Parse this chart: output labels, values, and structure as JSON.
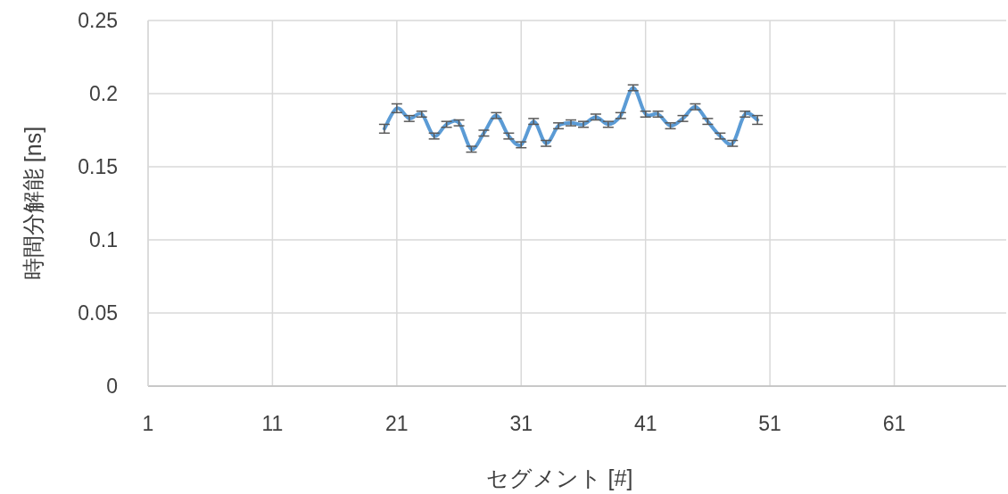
{
  "chart_data": {
    "type": "line",
    "xlabel": "セグメント [#]",
    "ylabel": "時間分解能 [ns]",
    "x": [
      20,
      21,
      22,
      23,
      24,
      25,
      26,
      27,
      28,
      29,
      30,
      31,
      32,
      33,
      34,
      35,
      36,
      37,
      38,
      39,
      40,
      41,
      42,
      43,
      44,
      45,
      46,
      47,
      48,
      49,
      50
    ],
    "series": [
      {
        "color": "#5b9bd5",
        "values": [
          0.176,
          0.19,
          0.183,
          0.186,
          0.171,
          0.179,
          0.18,
          0.162,
          0.173,
          0.185,
          0.171,
          0.165,
          0.181,
          0.166,
          0.178,
          0.18,
          0.179,
          0.184,
          0.179,
          0.185,
          0.204,
          0.186,
          0.186,
          0.178,
          0.183,
          0.191,
          0.181,
          0.171,
          0.166,
          0.186,
          0.182
        ],
        "errors": [
          0.003,
          0.003,
          0.002,
          0.002,
          0.002,
          0.002,
          0.002,
          0.002,
          0.002,
          0.002,
          0.002,
          0.002,
          0.002,
          0.002,
          0.002,
          0.002,
          0.002,
          0.002,
          0.002,
          0.002,
          0.002,
          0.002,
          0.002,
          0.002,
          0.002,
          0.002,
          0.002,
          0.002,
          0.002,
          0.002,
          0.003
        ]
      }
    ],
    "xlim": [
      1,
      70
    ],
    "xticks": [
      1,
      11,
      21,
      31,
      41,
      51,
      61
    ],
    "ylim": [
      0,
      0.25
    ],
    "yticks": [
      {
        "value": 0,
        "label": "0"
      },
      0.05,
      0.1,
      0.15,
      0.2,
      0.25
    ],
    "grid": true,
    "marker": "none",
    "line_style": "solid"
  }
}
